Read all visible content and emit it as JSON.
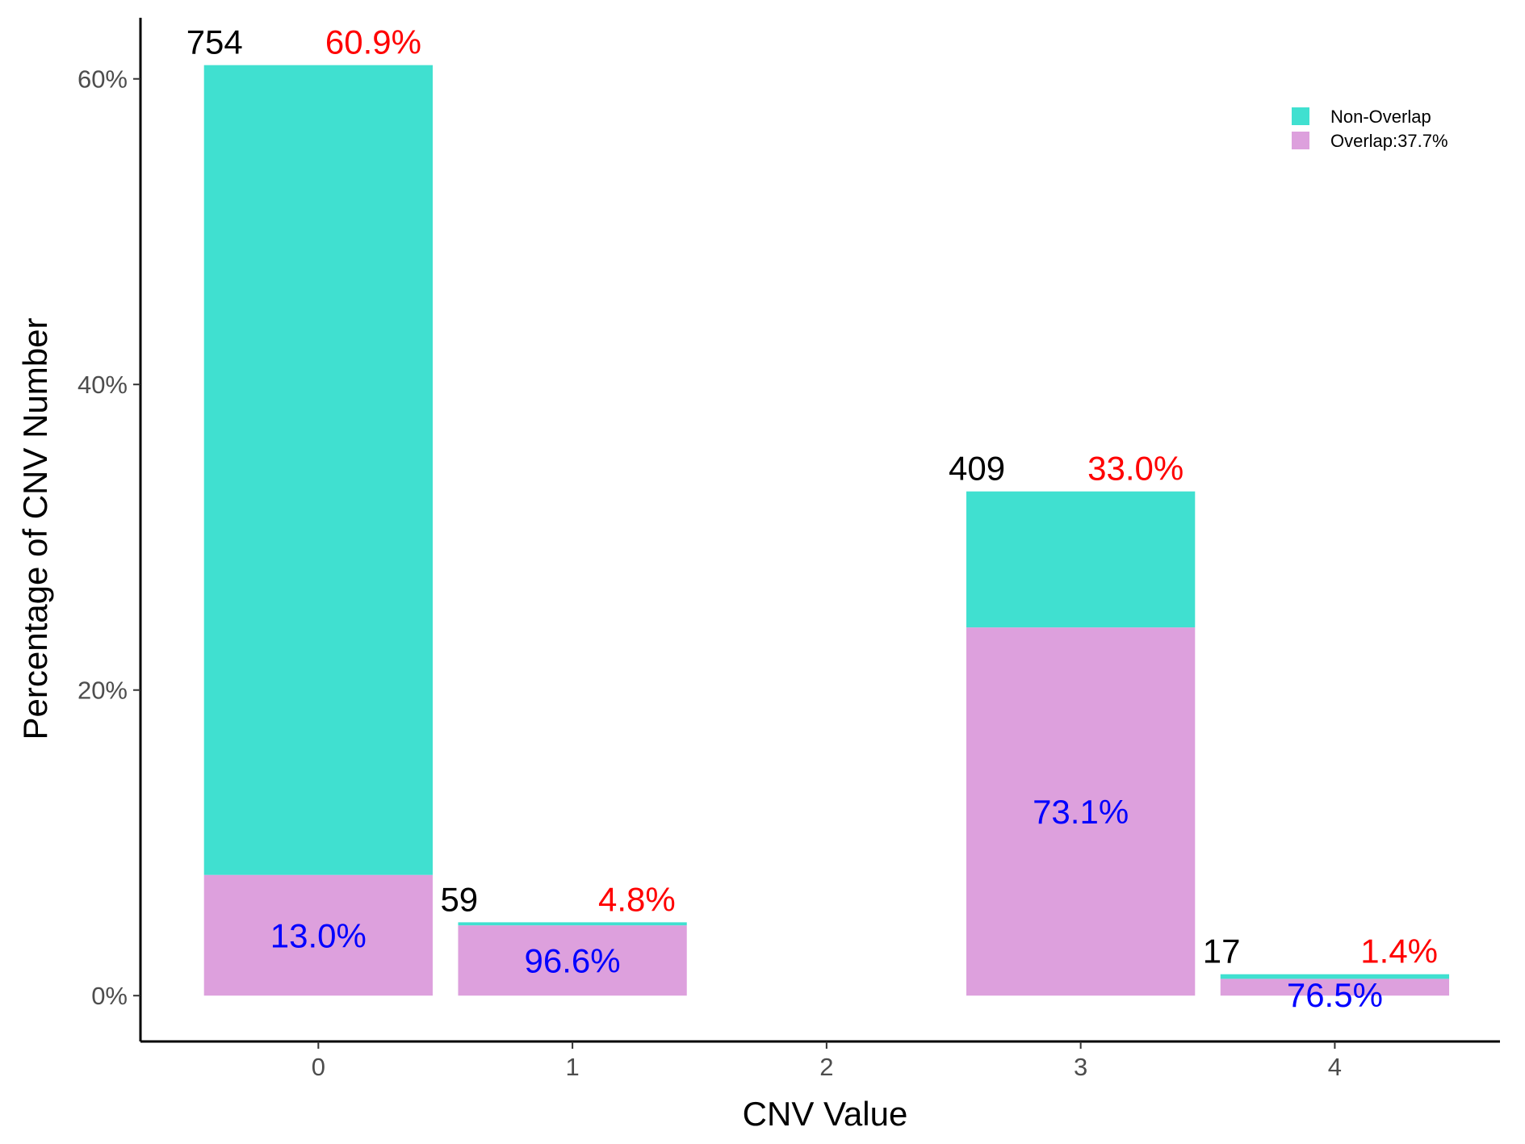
{
  "chart_data": {
    "type": "bar",
    "stacked": true,
    "xlabel": "CNV Value",
    "ylabel": "Percentage of CNV Number",
    "categories": [
      "0",
      "1",
      "2",
      "3",
      "4"
    ],
    "y_ticks": [
      "0%",
      "20%",
      "40%",
      "60%"
    ],
    "y_tick_values": [
      0,
      20,
      40,
      60
    ],
    "ylim": [
      -3,
      64
    ],
    "grid": false,
    "legend_position": "top-right",
    "series": [
      {
        "name": "Non-Overlap",
        "color": "#40E0D0",
        "values": [
          53.0,
          0.2,
          0,
          8.9,
          0.3
        ]
      },
      {
        "name": "Overlap:37.7%",
        "color": "#DDA0DD",
        "values": [
          7.9,
          4.6,
          0,
          24.1,
          1.1
        ]
      }
    ],
    "bars": [
      {
        "category": "0",
        "count": "754",
        "total_pct": "60.9%",
        "overlap_pct": "13.0%",
        "total": 60.9
      },
      {
        "category": "1",
        "count": "59",
        "total_pct": "4.8%",
        "overlap_pct": "96.6%",
        "total": 4.8
      },
      {
        "category": "3",
        "count": "409",
        "total_pct": "33.0%",
        "overlap_pct": "73.1%",
        "total": 33.0
      },
      {
        "category": "4",
        "count": "17",
        "total_pct": "1.4%",
        "overlap_pct": "76.5%",
        "total": 1.4
      }
    ],
    "label_colors": {
      "count": "#000000",
      "total_pct": "#FF0000",
      "overlap_pct": "#0000FF"
    }
  }
}
